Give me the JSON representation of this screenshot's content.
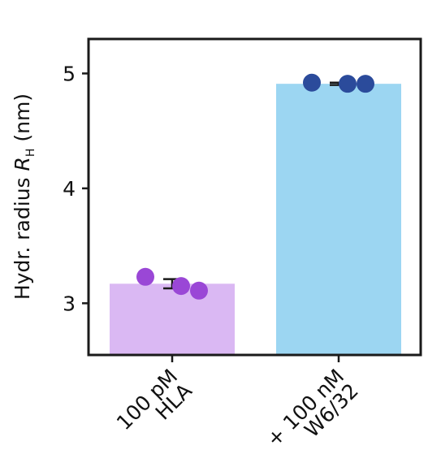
{
  "chart_data": {
    "type": "bar",
    "categories": [
      {
        "line1": "100 pM",
        "line2": "HLA"
      },
      {
        "line1": "+ 100 nM",
        "line2": "W6/32"
      }
    ],
    "values": [
      3.17,
      4.91
    ],
    "errors": [
      0.04,
      0.01
    ],
    "points": [
      [
        3.23,
        3.15,
        3.11
      ],
      [
        4.92,
        4.91,
        4.91
      ]
    ],
    "bar_colors": [
      "#dab8f3",
      "#9cd6f2"
    ],
    "point_colors": [
      "#9a47d6",
      "#2b4b9b"
    ],
    "ylabel": {
      "prefix": "Hydr. radius ",
      "symbol": "R",
      "subscript": "H",
      "unit": " (nm)"
    },
    "ylim": [
      2.55,
      5.3
    ],
    "yticks": [
      "3",
      "4",
      "5"
    ],
    "grid": false
  }
}
